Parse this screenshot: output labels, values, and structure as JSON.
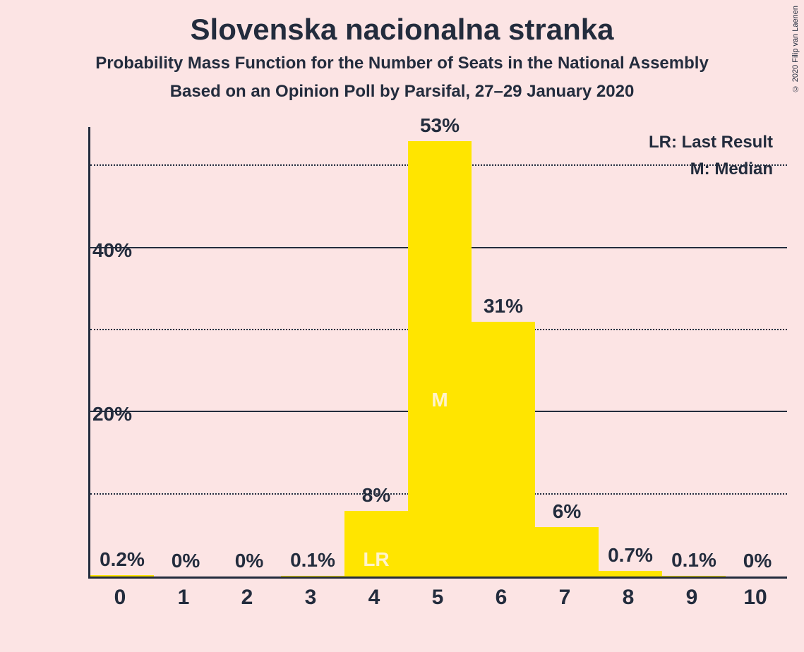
{
  "copyright": "© 2020 Filip van Laenen",
  "title": "Slovenska nacionalna stranka",
  "subtitle1": "Probability Mass Function for the Number of Seats in the National Assembly",
  "subtitle2": "Based on an Opinion Poll by Parsifal, 27–29 January 2020",
  "legend": {
    "lr": "LR: Last Result",
    "m": "M: Median"
  },
  "chart": {
    "type": "bar",
    "background_color": "#fce4e4",
    "bar_color": "#ffe500",
    "axis_color": "#232c3d",
    "text_color": "#232c3d",
    "inner_label_color": "#fff3cc",
    "ylim_max": 55,
    "y_major_ticks": [
      20,
      40
    ],
    "y_minor_ticks": [
      10,
      30,
      50
    ],
    "xlabels": [
      "0",
      "1",
      "2",
      "3",
      "4",
      "5",
      "6",
      "7",
      "8",
      "9",
      "10"
    ],
    "values": [
      0.2,
      0,
      0,
      0.1,
      8,
      53,
      31,
      6,
      0.7,
      0.1,
      0
    ],
    "value_labels": [
      "0.2%",
      "0%",
      "0%",
      "0.1%",
      "8%",
      "53%",
      "31%",
      "6%",
      "0.7%",
      "0.1%",
      "0%"
    ],
    "lr_index": 4,
    "m_index": 5,
    "lr_text": "LR",
    "m_text": "M",
    "title_fontsize": 42,
    "subtitle_fontsize": 24,
    "tick_fontsize": 28,
    "bar_width_ratio": 1.0
  }
}
